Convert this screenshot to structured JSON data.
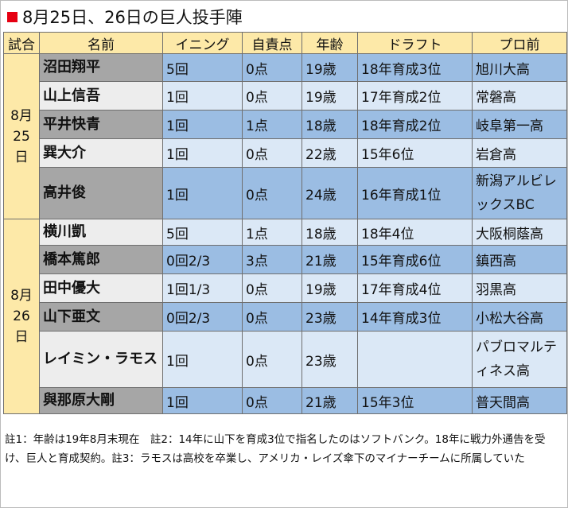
{
  "title": "8月25日、26日の巨人投手陣",
  "headers": [
    "試合",
    "名前",
    "イニング",
    "自責点",
    "年齢",
    "ドラフト",
    "プロ前"
  ],
  "groups": [
    {
      "date": [
        "8月",
        "25",
        "日"
      ],
      "rows": [
        {
          "name": "沼田翔平",
          "innings": "5回",
          "er": "0点",
          "age": "19歳",
          "draft": "18年育成3位",
          "prev": "旭川大高"
        },
        {
          "name": "山上信吾",
          "innings": "1回",
          "er": "0点",
          "age": "19歳",
          "draft": "17年育成2位",
          "prev": "常磐高"
        },
        {
          "name": "平井快青",
          "innings": "1回",
          "er": "1点",
          "age": "18歳",
          "draft": "18年育成2位",
          "prev": "岐阜第一高"
        },
        {
          "name": "巽大介",
          "innings": "1回",
          "er": "0点",
          "age": "22歳",
          "draft": "15年6位",
          "prev": "岩倉高"
        },
        {
          "name": "高井俊",
          "innings": "1回",
          "er": "0点",
          "age": "24歳",
          "draft": "16年育成1位",
          "prev": "新潟アルビレックスBC"
        }
      ]
    },
    {
      "date": [
        "8月",
        "26",
        "日"
      ],
      "rows": [
        {
          "name": "横川凱",
          "innings": "5回",
          "er": "1点",
          "age": "18歳",
          "draft": "18年4位",
          "prev": "大阪桐蔭高"
        },
        {
          "name": "橋本篤郎",
          "innings": "0回2/3",
          "er": "3点",
          "age": "21歳",
          "draft": "15年育成6位",
          "prev": "鎮西高"
        },
        {
          "name": "田中優大",
          "innings": "1回1/3",
          "er": "0点",
          "age": "19歳",
          "draft": "17年育成4位",
          "prev": "羽黒高"
        },
        {
          "name": "山下亜文",
          "innings": "0回2/3",
          "er": "0点",
          "age": "23歳",
          "draft": "14年育成3位",
          "prev": "小松大谷高"
        },
        {
          "name": "レイミン・ラモス",
          "innings": "1回",
          "er": "0点",
          "age": "23歳",
          "draft": "",
          "prev": "パブロマルティネス高"
        },
        {
          "name": "與那原大剛",
          "innings": "1回",
          "er": "0点",
          "age": "21歳",
          "draft": "15年3位",
          "prev": "普天間高"
        }
      ]
    }
  ],
  "note": "註1：年齢は19年8月末現在　註2：14年に山下を育成3位で指名したのはソフトバンク。18年に戦力外通告を受け、巨人と育成契約。註3：ラモスは高校を卒業し、アメリカ・レイズ傘下のマイナーチームに所属していた",
  "colors": {
    "accent": "#e60012",
    "header_bg": "#fde9a8",
    "row_dark": "#9bbde3",
    "row_light": "#dbe8f6",
    "name_dark": "#a6a6a6",
    "name_light": "#ededed"
  }
}
